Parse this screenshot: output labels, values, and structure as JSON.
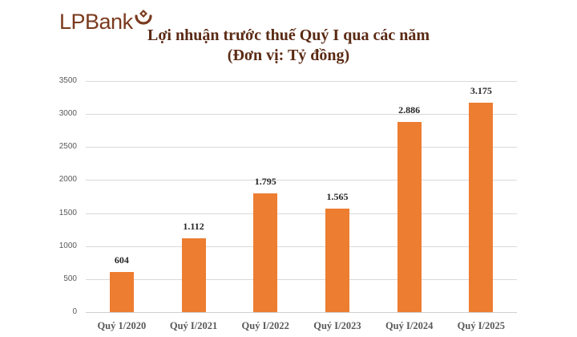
{
  "brand": {
    "name": "LPBank",
    "color": "#7a3a1e",
    "icon": "lpbank-emblem-icon"
  },
  "chart_data": {
    "type": "bar",
    "title": "Lợi nhuận trước thuế Quý I qua các năm",
    "subtitle": "(Đơn vị: Tỷ đồng)",
    "xlabel": "",
    "ylabel": "",
    "categories": [
      "Quý 1/2020",
      "Quý I/2021",
      "Quý I/2022",
      "Quý I/2023",
      "Quý I/2024",
      "Quý I/2025"
    ],
    "values": [
      604,
      1112,
      1795,
      1565,
      2886,
      3175
    ],
    "data_labels": [
      "604",
      "1.112",
      "1.795",
      "1.565",
      "2.886",
      "3.175"
    ],
    "ylim": [
      0,
      3500
    ],
    "yticks": [
      0,
      500,
      1000,
      1500,
      2000,
      2500,
      3000,
      3500
    ],
    "grid": true,
    "legend": null,
    "bar_color": "#ed7d31"
  }
}
